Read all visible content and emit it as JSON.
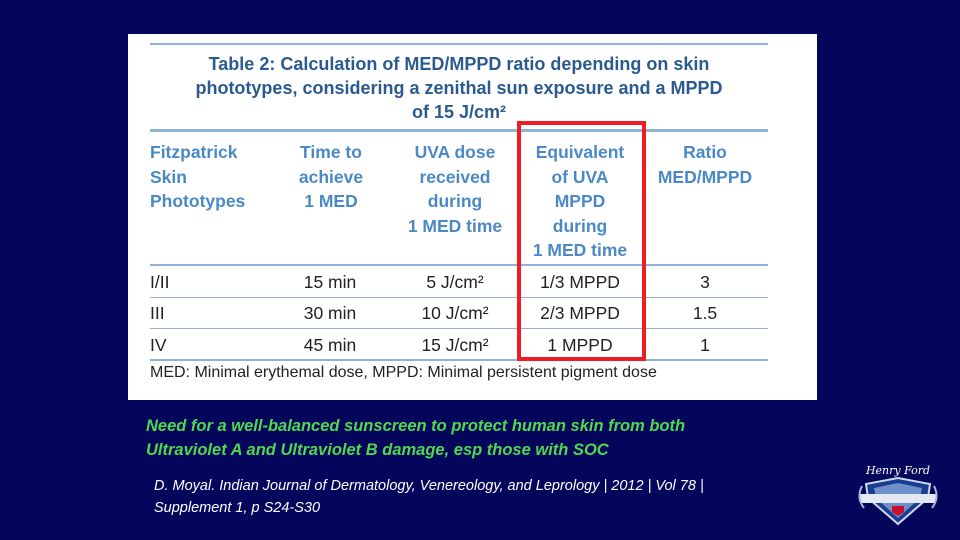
{
  "table": {
    "title_lines": [
      "Table 2: Calculation of MED/MPPD ratio depending on skin",
      "phototypes, considering a zenithal sun exposure and a MPPD",
      "of 15 J/cm²"
    ],
    "headers": [
      [
        "Fitzpatrick",
        "Skin",
        "Phototypes"
      ],
      [
        "Time to",
        "achieve",
        "1 MED"
      ],
      [
        "UVA dose",
        "received",
        "during",
        "1 MED time"
      ],
      [
        "Equivalent",
        "of UVA",
        "MPPD",
        "during",
        "1 MED time"
      ],
      [
        "Ratio",
        "MED/MPPD"
      ]
    ],
    "rows": [
      [
        "I/II",
        "15 min",
        "5 J/cm²",
        "1/3 MPPD",
        "3"
      ],
      [
        "III",
        "30 min",
        "10 J/cm²",
        "2/3 MPPD",
        "1.5"
      ],
      [
        "IV",
        "45 min",
        "15 J/cm²",
        "1 MPPD",
        "1"
      ]
    ],
    "footnote": "MED: Minimal erythemal dose, MPPD: Minimal persistent pigment dose"
  },
  "caption": {
    "line1": "Need for a well-balanced sunscreen to protect human skin from both",
    "line2": "Ultraviolet A and Ultraviolet B damage, esp those with SOC"
  },
  "citation": {
    "line1": "D. Moyal. Indian Journal of Dermatology, Venereology, and Leprology | 2012 | Vol 78 |",
    "line2": "Supplement 1, p S24-S30"
  },
  "logo": {
    "script_text": "Henry Ford"
  },
  "colors": {
    "background": "#03065a",
    "title": "#2b5a8f",
    "header": "#4b89c6",
    "highlight_box": "#ee1c25",
    "caption": "#4fd84f"
  }
}
